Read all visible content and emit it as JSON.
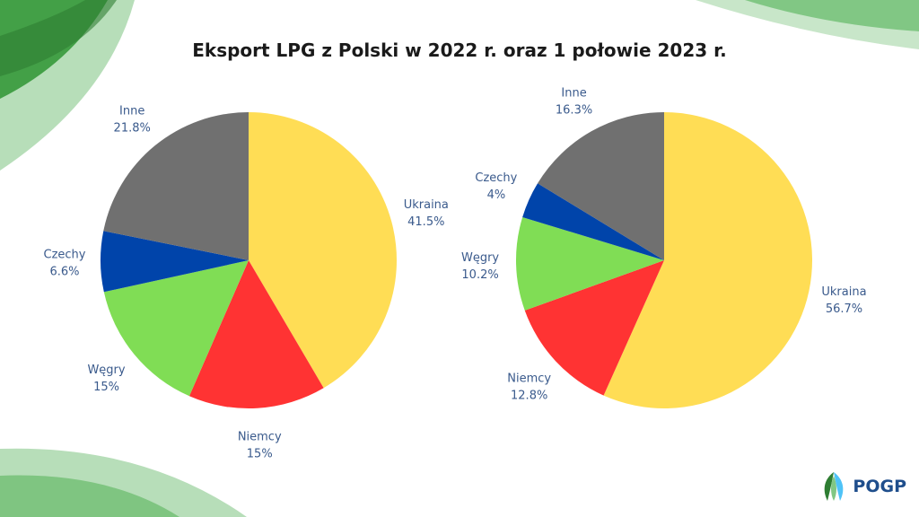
{
  "title": "Eksport LPG z Polski w 2022 r. oraz 1 połowie 2023 r.",
  "logo": {
    "text": "POGP"
  },
  "colors": {
    "Ukraina": "#FFDD55",
    "Niemcy": "#FF3333",
    "Węgry": "#80DD55",
    "Czechy": "#0044AA",
    "Inne": "#707070",
    "label": "#3a5a8c",
    "decor_green": "#4caf50"
  },
  "chart_data": [
    {
      "type": "pie",
      "title": "",
      "slices": [
        {
          "label": "Ukraina",
          "value": 41.5,
          "display": "41.5%"
        },
        {
          "label": "Niemcy",
          "value": 15,
          "display": "15%"
        },
        {
          "label": "Węgry",
          "value": 15,
          "display": "15%"
        },
        {
          "label": "Czechy",
          "value": 6.6,
          "display": "6.6%"
        },
        {
          "label": "Inne",
          "value": 21.8,
          "display": "21.8%"
        }
      ]
    },
    {
      "type": "pie",
      "title": "",
      "slices": [
        {
          "label": "Ukraina",
          "value": 56.7,
          "display": "56.7%"
        },
        {
          "label": "Niemcy",
          "value": 12.8,
          "display": "12.8%"
        },
        {
          "label": "Węgry",
          "value": 10.2,
          "display": "10.2%"
        },
        {
          "label": "Czechy",
          "value": 4,
          "display": "4%"
        },
        {
          "label": "Inne",
          "value": 16.3,
          "display": "16.3%"
        }
      ]
    }
  ]
}
